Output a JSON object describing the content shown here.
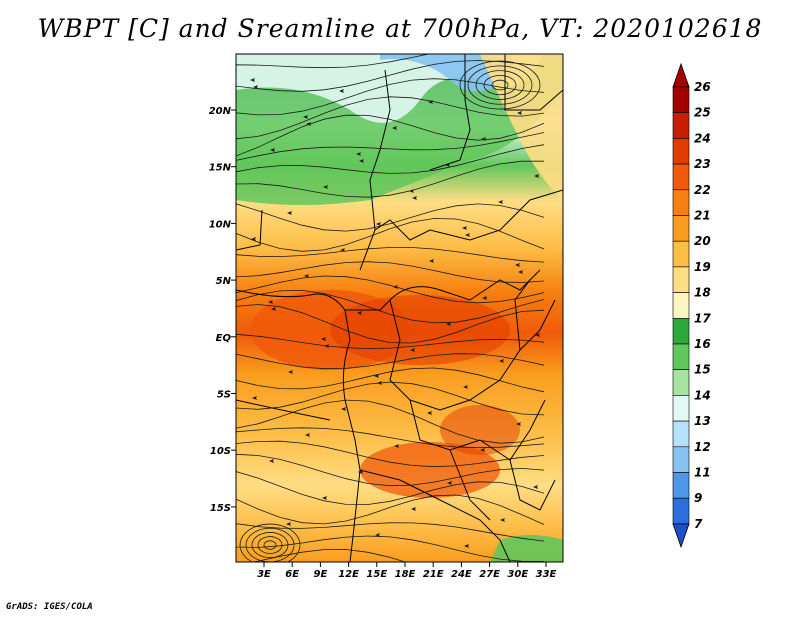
{
  "title": "WBPT [C] and Sreamline at 700hPa, VT: 2020102618",
  "credit": "GrADS: IGES/COLA",
  "map": {
    "lat_labels": [
      "20N",
      "15N",
      "10N",
      "5N",
      "EQ",
      "5S",
      "10S",
      "15S"
    ],
    "lon_labels": [
      "3E",
      "6E",
      "9E",
      "12E",
      "15E",
      "18E",
      "21E",
      "24E",
      "27E",
      "30E",
      "33E"
    ]
  },
  "colorbar": {
    "levels": [
      "26",
      "25",
      "24",
      "23",
      "22",
      "21",
      "20",
      "19",
      "18",
      "17",
      "16",
      "15",
      "14",
      "13",
      "12",
      "11",
      "9",
      "7"
    ],
    "colors": [
      "#a50000",
      "#c81e00",
      "#e13c00",
      "#f05a0a",
      "#f77f0f",
      "#fa9d1e",
      "#fdbe48",
      "#fedd84",
      "#fff5c0",
      "#2ea839",
      "#62c75b",
      "#a6e39c",
      "#e1f8f3",
      "#b4e1fb",
      "#86c2f2",
      "#4e96e6",
      "#2c6ede",
      "#1b50c8"
    ],
    "top_arrow_color": "#a50000",
    "bottom_arrow_color": "#1b50c8"
  }
}
